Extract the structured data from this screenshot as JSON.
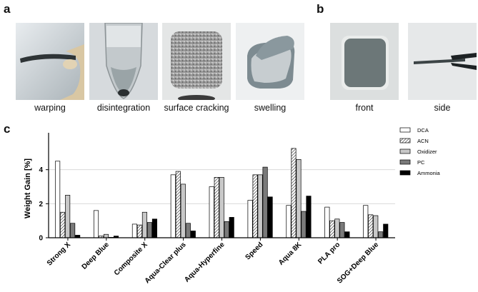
{
  "panels": {
    "a": {
      "letter": "a",
      "captions": [
        "warping",
        "disintegration",
        "surface cracking",
        "swelling"
      ]
    },
    "b": {
      "letter": "b",
      "captions": [
        "front",
        "side"
      ]
    },
    "c": {
      "letter": "c"
    }
  },
  "chart_data": {
    "type": "bar",
    "title": "",
    "xlabel": "",
    "ylabel": "Weight Gain [%]",
    "ylim": [
      0,
      6
    ],
    "yticks": [
      0,
      2,
      4
    ],
    "grid": true,
    "legend_position": "top-right",
    "categories": [
      "Strong X",
      "Deep Blue",
      "Composite X",
      "Aqua-Clear plus",
      "Aqua-Hyperfine",
      "Speed",
      "Aqua 8K",
      "PLA pro",
      "SOG+Deep Blue"
    ],
    "series": [
      {
        "name": "DCA",
        "style": "white",
        "values": [
          4.5,
          1.6,
          0.8,
          3.7,
          3.0,
          2.2,
          1.9,
          1.8,
          1.9
        ]
      },
      {
        "name": "ACN",
        "style": "hatched",
        "values": [
          1.5,
          0.1,
          0.75,
          3.9,
          3.55,
          3.7,
          5.25,
          1.0,
          1.35
        ]
      },
      {
        "name": "Oxidizer",
        "style": "lightgray",
        "values": [
          2.5,
          0.2,
          1.5,
          3.15,
          3.55,
          3.7,
          4.6,
          1.1,
          1.3
        ]
      },
      {
        "name": "PC",
        "style": "gray",
        "values": [
          0.85,
          0.0,
          0.9,
          0.85,
          0.95,
          4.15,
          1.55,
          0.9,
          0.35
        ]
      },
      {
        "name": "Ammonia",
        "style": "black",
        "values": [
          0.15,
          0.1,
          1.1,
          0.4,
          1.2,
          2.4,
          2.45,
          0.35,
          0.8
        ]
      }
    ]
  }
}
